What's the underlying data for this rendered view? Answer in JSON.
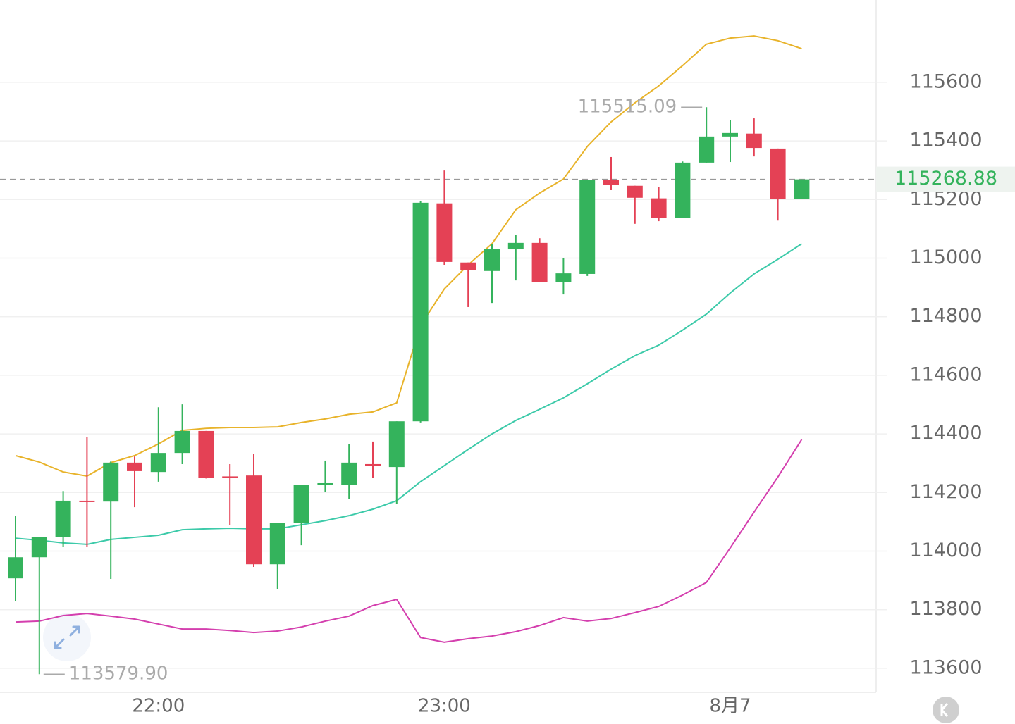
{
  "chart_data": {
    "type": "candlestick",
    "categories": [
      null,
      null,
      null,
      null,
      null,
      null,
      "22:00",
      null,
      null,
      null,
      null,
      null,
      null,
      null,
      null,
      null,
      null,
      null,
      "23:00",
      null,
      null,
      null,
      null,
      null,
      null,
      null,
      null,
      null,
      null,
      null,
      "8月7",
      null,
      null,
      null
    ],
    "open": [
      113907,
      113979,
      114049,
      114172,
      114169,
      114302,
      114270,
      114335,
      114410,
      114255,
      114258,
      113955,
      114095,
      114227,
      114227,
      114297,
      114287,
      114443,
      115187,
      114985,
      114956,
      115030,
      115052,
      114919,
      114946,
      115268,
      115247,
      115204,
      115138,
      115326,
      115415,
      115425,
      115374,
      115203
    ],
    "high": [
      114119,
      114049,
      114205,
      114390,
      114306,
      114323,
      114491,
      114501,
      114410,
      114297,
      114333,
      114095,
      114227,
      114309,
      114366,
      114374,
      114443,
      115196,
      115299,
      114985,
      115049,
      115080,
      115068,
      114999,
      115268,
      115345,
      115247,
      115244,
      115330,
      115515.09,
      115470,
      115477,
      115374,
      115268.88
    ],
    "low": [
      113830,
      113579.9,
      114015,
      114015,
      113905,
      114150,
      114237,
      114297,
      114248,
      114090,
      113946,
      113871,
      114020,
      114203,
      114179,
      114251,
      114162,
      114439,
      114977,
      114833,
      114847,
      114924,
      114919,
      114876,
      114939,
      115232,
      115117,
      115126,
      115138,
      115326,
      115328,
      115347,
      115128,
      115203
    ],
    "close": [
      113979,
      114049,
      114172,
      114168,
      114302,
      114273,
      114335,
      114410,
      114251,
      114251,
      113955,
      114095,
      114227,
      114232,
      114302,
      114290,
      114443,
      115189,
      114987,
      114958,
      115030,
      115052,
      114919,
      114948,
      115268,
      115249,
      115206,
      115138,
      115326,
      115415,
      115427,
      115376,
      115203,
      115268.88
    ],
    "up_color": "#34b35c",
    "down_color": "#e44155",
    "lines": [
      {
        "color": "#e8b32a",
        "values": [
          114326,
          114304,
          114270,
          114256,
          114302,
          114326,
          114366,
          114412,
          114419,
          114422,
          114422,
          114424,
          114439,
          114451,
          114467,
          114475,
          114506,
          114770,
          114895,
          114977,
          115049,
          115165,
          115222,
          115270,
          115381,
          115465,
          115530,
          115588,
          115657,
          115730,
          115751,
          115758,
          115742,
          115715
        ]
      },
      {
        "color": "#3ccaa9",
        "values": [
          114044,
          114037,
          114028,
          114023,
          114040,
          114047,
          114054,
          114073,
          114076,
          114078,
          114076,
          114076,
          114090,
          114104,
          114121,
          114143,
          114172,
          114237,
          114292,
          114347,
          114400,
          114446,
          114484,
          114523,
          114571,
          114621,
          114667,
          114703,
          114754,
          114809,
          114881,
          114946,
          114996,
          115049
        ]
      },
      {
        "color": "#d43fae",
        "values": [
          113758,
          113761,
          113780,
          113787,
          113778,
          113768,
          113751,
          113734,
          113734,
          113729,
          113722,
          113727,
          113741,
          113761,
          113778,
          113814,
          113835,
          113705,
          113689,
          113701,
          113710,
          113725,
          113746,
          113773,
          113761,
          113770,
          113790,
          113811,
          113850,
          113893,
          114011,
          114133,
          114253,
          114381
        ]
      }
    ],
    "ylim": [
      113518,
      115881
    ],
    "yticks": [
      113600,
      113800,
      114000,
      114200,
      114400,
      114600,
      114800,
      115000,
      115200,
      115400,
      115600
    ],
    "grid": true,
    "max_label": 115515.09,
    "min_label": {
      "value": 113579.9,
      "label": "113579.90"
    },
    "last_price": 115268.88
  }
}
